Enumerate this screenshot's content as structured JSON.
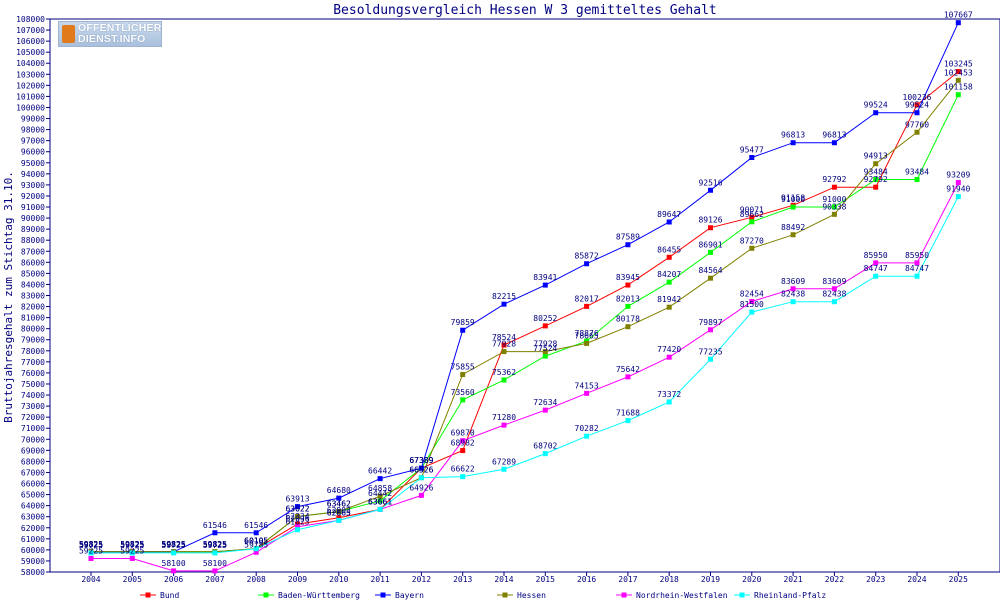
{
  "logo": {
    "line1": "ÖFFENTLICHER",
    "line2": "DIENST.INFO"
  },
  "chart_data": {
    "type": "line",
    "title": "Besoldungsvergleich Hessen W 3 gemitteltes Gehalt",
    "xlabel": "",
    "ylabel": "Bruttojahresgehalt zum Stichtag 31.10.",
    "ylim": [
      58000,
      108000
    ],
    "ytick_step": 1000,
    "grid": false,
    "legend_position": "bottom",
    "x": [
      "2004",
      "2005",
      "2006",
      "2007",
      "2008",
      "2009",
      "2010",
      "2011",
      "2012",
      "2013",
      "2014",
      "2015",
      "2016",
      "2017",
      "2018",
      "2019",
      "2020",
      "2021",
      "2022",
      "2023",
      "2024",
      "2025"
    ],
    "series": [
      {
        "name": "Bund",
        "color": "#ff0000",
        "values": [
          59825,
          59825,
          59825,
          59825,
          60105,
          62334,
          62903,
          63661,
          67389,
          68982,
          78524,
          80252,
          82017,
          83945,
          86455,
          89126,
          90071,
          91158,
          92792,
          92792,
          100236,
          103245
        ]
      },
      {
        "name": "Baden-Württemberg",
        "color": "#00ff00",
        "values": [
          59825,
          59825,
          59825,
          59825,
          60105,
          63022,
          63462,
          64442,
          67389,
          73560,
          75362,
          77524,
          78876,
          82013,
          84207,
          86901,
          89662,
          91000,
          91000,
          93484,
          93484,
          101158
        ]
      },
      {
        "name": "Bayern",
        "color": "#0000ff",
        "values": [
          59825,
          59825,
          59825,
          61546,
          61546,
          63913,
          64680,
          66442,
          67389,
          79859,
          82215,
          83941,
          85872,
          87589,
          89647,
          92516,
          95477,
          96813,
          96813,
          99524,
          99524,
          107667
        ]
      },
      {
        "name": "Hessen",
        "color": "#808000",
        "values": [
          59825,
          59825,
          59825,
          59825,
          60105,
          63022,
          63462,
          64858,
          66526,
          75855,
          77928,
          77928,
          78665,
          80178,
          81942,
          84564,
          87270,
          88492,
          90338,
          94913,
          97760,
          102453
        ]
      },
      {
        "name": "Nordrhein-Westfalen",
        "color": "#ff00ff",
        "values": [
          59225,
          59225,
          58100,
          58100,
          59785,
          62096,
          62665,
          63661,
          64926,
          69870,
          71280,
          72634,
          74153,
          75642,
          77420,
          79897,
          82454,
          83609,
          83609,
          85950,
          85950,
          93209
        ]
      },
      {
        "name": "Rheinland-Pfalz",
        "color": "#00ffff",
        "values": [
          59725,
          59725,
          59725,
          59725,
          60105,
          61823,
          62665,
          63661,
          66526,
          66622,
          67289,
          68702,
          70282,
          71688,
          73372,
          77235,
          81500,
          82438,
          82438,
          84747,
          84747,
          91940
        ]
      }
    ]
  }
}
